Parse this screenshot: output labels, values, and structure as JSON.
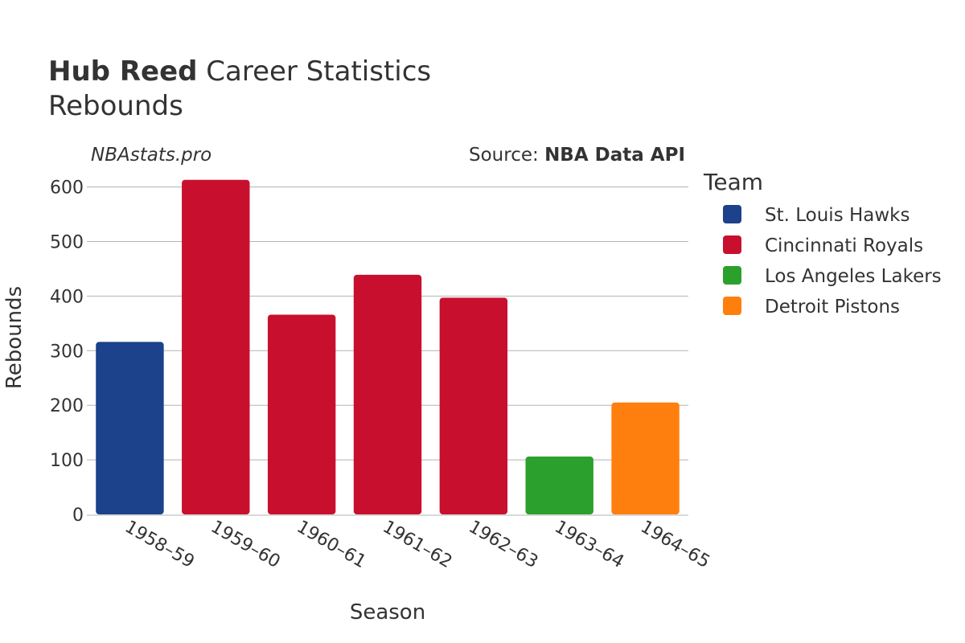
{
  "header": {
    "player_name": "Hub Reed",
    "title_suffix": " Career Statistics",
    "subtitle": "Rebounds",
    "site": "NBAstats.pro",
    "source_prefix": "Source: ",
    "source_name": "NBA Data API"
  },
  "legend": {
    "title": "Team",
    "items": [
      {
        "label": "St. Louis Hawks",
        "color": "#1b428a"
      },
      {
        "label": "Cincinnati Royals",
        "color": "#c8102e"
      },
      {
        "label": "Los Angeles Lakers",
        "color": "#2ca02c"
      },
      {
        "label": "Detroit Pistons",
        "color": "#ff7f0e"
      }
    ]
  },
  "chart_data": {
    "type": "bar",
    "xlabel": "Season",
    "ylabel": "Rebounds",
    "ylim": [
      0,
      620
    ],
    "yticks": [
      0,
      100,
      200,
      300,
      400,
      500,
      600
    ],
    "grid": true,
    "legend_position": "right",
    "categories": [
      "1958–59",
      "1959–60",
      "1960–61",
      "1961–62",
      "1962–63",
      "1963–64",
      "1964–65"
    ],
    "values": [
      316,
      613,
      366,
      439,
      397,
      106,
      205
    ],
    "teams": [
      "St. Louis Hawks",
      "Cincinnati Royals",
      "Cincinnati Royals",
      "Cincinnati Royals",
      "Cincinnati Royals",
      "Los Angeles Lakers",
      "Detroit Pistons"
    ]
  }
}
